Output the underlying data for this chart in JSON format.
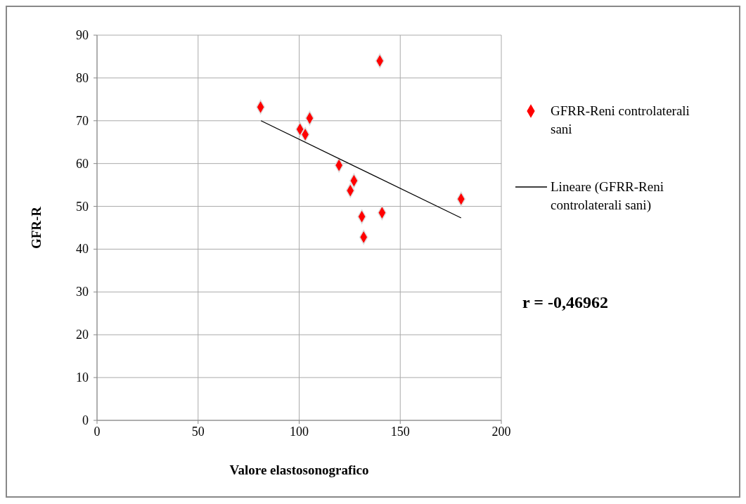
{
  "chart_data": {
    "type": "scatter",
    "xlabel": "Valore elastosonografico",
    "ylabel": "GFR-R",
    "xlim": [
      0,
      200
    ],
    "xticks": [
      0,
      50,
      100,
      150,
      200
    ],
    "ylim": [
      0,
      90
    ],
    "yticks": [
      0,
      10,
      20,
      30,
      40,
      50,
      60,
      70,
      80,
      90
    ],
    "grid": true,
    "legend": "right",
    "series": [
      {
        "name": "GFRR-Reni controlaterali sani",
        "color": "#ff0000",
        "marker": "diamond",
        "x": [
          80.9,
          139.9,
          105.2,
          100.4,
          103,
          119.7,
          127.1,
          125.3,
          131,
          141,
          131.9,
          180.1
        ],
        "values": [
          73.2,
          84.0,
          70.6,
          68.0,
          66.8,
          59.6,
          56.0,
          53.7,
          47.6,
          48.5,
          42.8,
          51.7
        ]
      },
      {
        "name": "Lineare (GFRR-Reni controlaterali sani)",
        "color": "#000000",
        "type": "line",
        "marker": "none",
        "x": [
          81.1,
          180.1
        ],
        "values": [
          70.0,
          47.3
        ]
      }
    ],
    "annotations": [
      "r = -0,46962"
    ]
  }
}
